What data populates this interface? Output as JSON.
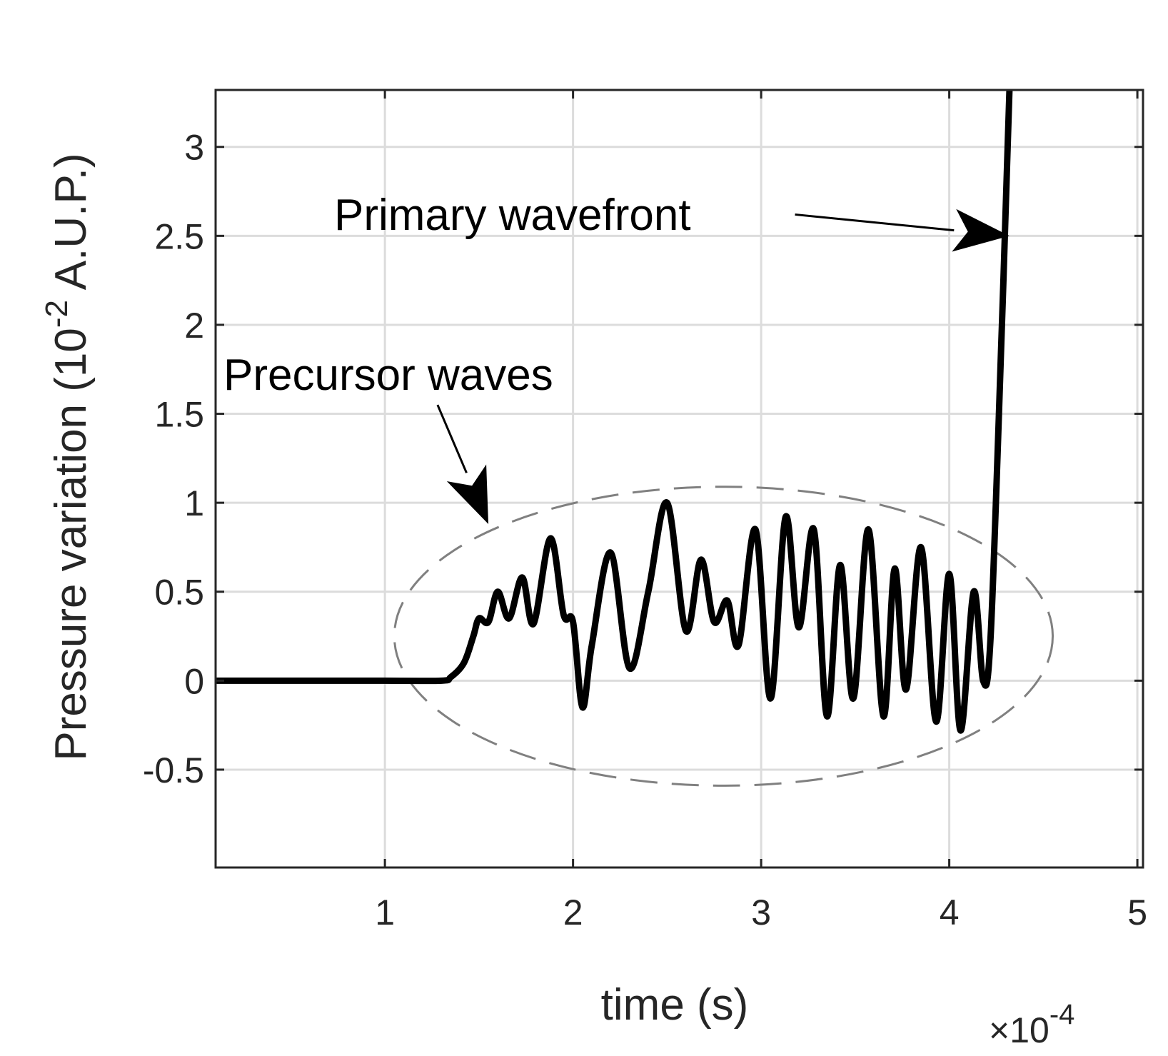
{
  "chart_data": {
    "type": "line",
    "title": "",
    "xlabel": "time (s)",
    "ylabel": "Pressure variation (10",
    "ylabel_exponent": "-2",
    "ylabel_unit": " A.U.P.)",
    "x_multiplier_base": "×10",
    "x_multiplier_exponent": "-4",
    "xlim": [
      0.1,
      5.03
    ],
    "ylim": [
      -1.05,
      3.32
    ],
    "xticks": [
      1,
      2,
      3,
      4,
      5
    ],
    "yticks": [
      -0.5,
      0,
      0.5,
      1,
      1.5,
      2,
      2.5,
      3
    ],
    "xtick_labels": [
      "1",
      "2",
      "3",
      "4",
      "5"
    ],
    "ytick_labels": [
      "-0.5",
      "0",
      "0.5",
      "1",
      "1.5",
      "2",
      "2.5",
      "3"
    ],
    "grid": true,
    "series": [
      {
        "name": "pressure",
        "color": "#000000",
        "points": [
          [
            0.1,
            0.0
          ],
          [
            1.0,
            0.0
          ],
          [
            1.3,
            0.0
          ],
          [
            1.35,
            0.02
          ],
          [
            1.42,
            0.1
          ],
          [
            1.47,
            0.25
          ],
          [
            1.5,
            0.35
          ],
          [
            1.55,
            0.33
          ],
          [
            1.6,
            0.5
          ],
          [
            1.66,
            0.35
          ],
          [
            1.73,
            0.58
          ],
          [
            1.79,
            0.32
          ],
          [
            1.88,
            0.8
          ],
          [
            1.95,
            0.37
          ],
          [
            2.0,
            0.33
          ],
          [
            2.05,
            -0.15
          ],
          [
            2.1,
            0.2
          ],
          [
            2.2,
            0.72
          ],
          [
            2.3,
            0.07
          ],
          [
            2.4,
            0.5
          ],
          [
            2.5,
            1.0
          ],
          [
            2.6,
            0.28
          ],
          [
            2.68,
            0.68
          ],
          [
            2.75,
            0.33
          ],
          [
            2.82,
            0.45
          ],
          [
            2.88,
            0.2
          ],
          [
            2.97,
            0.85
          ],
          [
            3.05,
            -0.1
          ],
          [
            3.13,
            0.92
          ],
          [
            3.2,
            0.3
          ],
          [
            3.28,
            0.85
          ],
          [
            3.35,
            -0.2
          ],
          [
            3.42,
            0.65
          ],
          [
            3.49,
            -0.1
          ],
          [
            3.57,
            0.85
          ],
          [
            3.65,
            -0.2
          ],
          [
            3.71,
            0.63
          ],
          [
            3.77,
            -0.05
          ],
          [
            3.85,
            0.75
          ],
          [
            3.93,
            -0.23
          ],
          [
            4.0,
            0.6
          ],
          [
            4.06,
            -0.28
          ],
          [
            4.13,
            0.5
          ],
          [
            4.18,
            0.0
          ],
          [
            4.22,
            0.25
          ],
          [
            4.28,
            2.0
          ],
          [
            4.32,
            3.32
          ]
        ]
      }
    ],
    "annotations": [
      {
        "text": "Primary wavefront",
        "arrow_from": [
          3.18,
          2.62
        ],
        "arrow_to": [
          4.32,
          2.5
        ]
      },
      {
        "text": "Precursor waves",
        "arrow_from": [
          1.28,
          1.55
        ],
        "arrow_to": [
          1.55,
          0.88
        ]
      }
    ],
    "highlight_region": {
      "shape": "ellipse",
      "style": "dashed",
      "color": "#808080",
      "center_x": 2.8,
      "center_y": 0.25,
      "half_width_x": 1.75,
      "half_height_y": 0.84
    }
  }
}
